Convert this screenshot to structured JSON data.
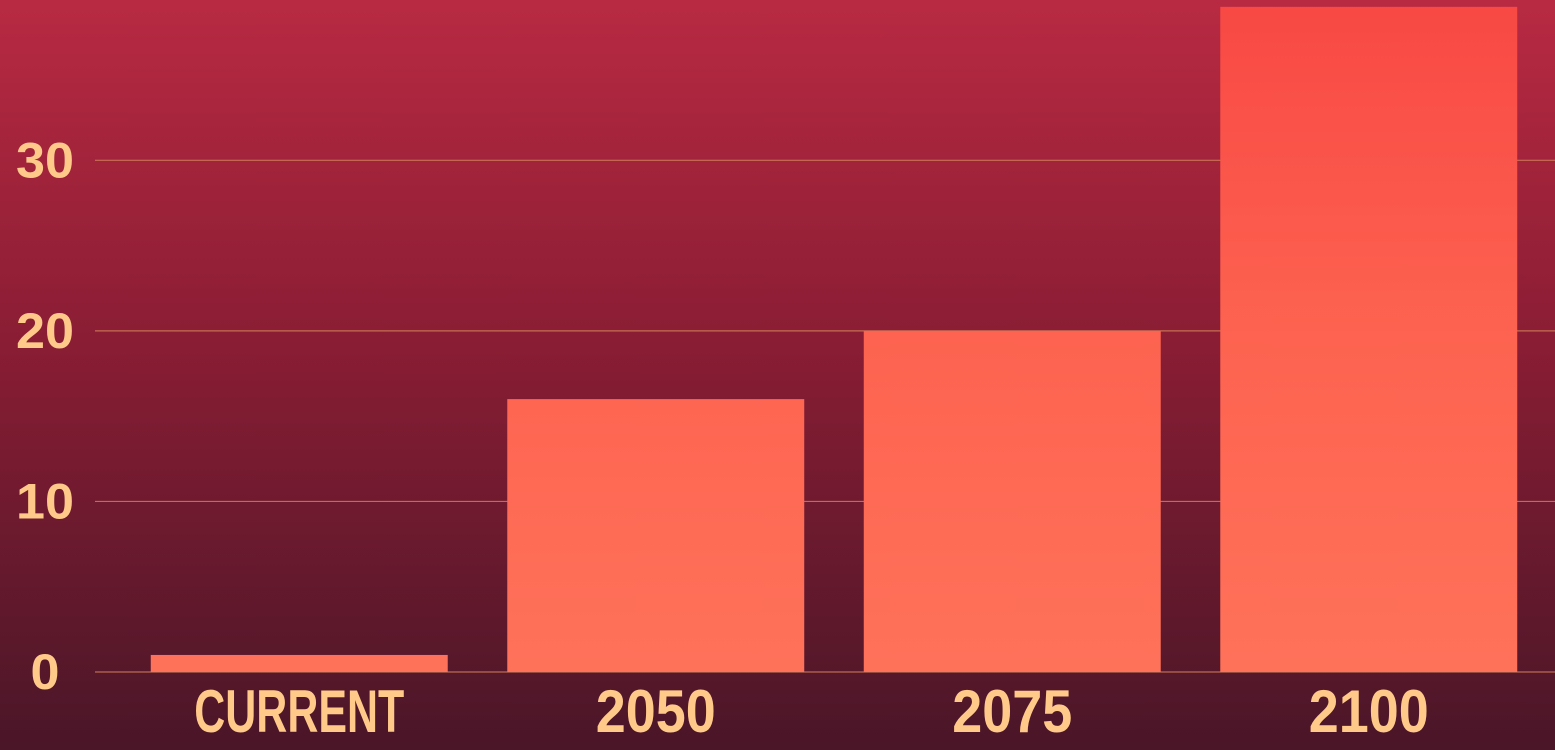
{
  "chart_data": {
    "type": "bar",
    "categories": [
      "CURRENT",
      "2050",
      "2075",
      "2100"
    ],
    "values": [
      1,
      16,
      20,
      39
    ],
    "color": "#ff6b55",
    "ylim": [
      0,
      39.4
    ],
    "yticks": [
      0,
      10,
      20,
      30
    ],
    "grid": true
  }
}
